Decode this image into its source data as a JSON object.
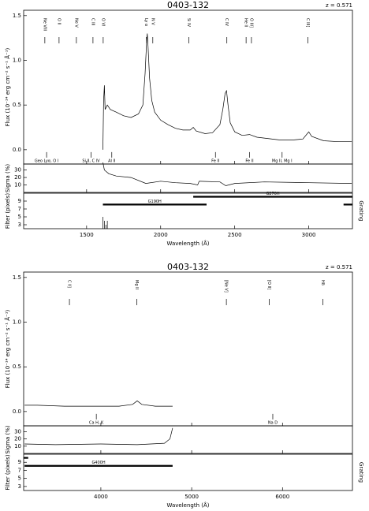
{
  "chart_data": [
    {
      "type": "spectrum",
      "title": "0403-132",
      "redshift_label": "z = 0.571",
      "xlabel": "Wavelength (Å)",
      "xlim": [
        1075,
        3295
      ],
      "xticks": [
        1500,
        2000,
        2500,
        3000
      ],
      "flux": {
        "ylabel": "Flux (10⁻¹⁴ erg cm⁻² s⁻¹ Å⁻¹)",
        "ylim": [
          -0.16,
          1.56
        ],
        "yticks": [
          {
            "value": 0,
            "label": "0.0"
          },
          0.5,
          {
            "value": 1,
            "label": "1.0"
          },
          1.5
        ],
        "x": [
          1610,
          1615,
          1620,
          1625,
          1640,
          1660,
          1700,
          1750,
          1800,
          1850,
          1880,
          1895,
          1905,
          1910,
          1915,
          1925,
          1940,
          1960,
          2000,
          2050,
          2100,
          2150,
          2200,
          2220,
          2240,
          2300,
          2350,
          2400,
          2420,
          2435,
          2445,
          2455,
          2470,
          2500,
          2550,
          2600,
          2650,
          2700,
          2800,
          2900,
          2960,
          2990,
          3000,
          3020,
          3100,
          3200,
          3290
        ],
        "values": [
          0.0,
          0.55,
          0.72,
          0.45,
          0.5,
          0.45,
          0.42,
          0.38,
          0.36,
          0.4,
          0.5,
          0.85,
          1.2,
          1.3,
          1.15,
          0.8,
          0.55,
          0.42,
          0.33,
          0.28,
          0.24,
          0.22,
          0.22,
          0.25,
          0.21,
          0.18,
          0.19,
          0.28,
          0.45,
          0.63,
          0.66,
          0.5,
          0.3,
          0.2,
          0.16,
          0.17,
          0.14,
          0.13,
          0.11,
          0.11,
          0.12,
          0.18,
          0.2,
          0.15,
          0.1,
          0.09,
          0.09
        ]
      },
      "sigma": {
        "ylabel": "Sigma (%)",
        "ylim": [
          0,
          38
        ],
        "yticks": [
          10,
          20,
          30
        ],
        "x": [
          1610,
          1620,
          1650,
          1700,
          1800,
          1900,
          2000,
          2100,
          2200,
          2250,
          2260,
          2400,
          2440,
          2500,
          2700,
          3000,
          3290
        ],
        "values": [
          40,
          30,
          25,
          22,
          20,
          12,
          15,
          13,
          12,
          10,
          15,
          14,
          9,
          12,
          14,
          13,
          12
        ]
      },
      "filter": {
        "ylabel": "Filter (pixels)",
        "ylim": [
          2,
          11
        ],
        "yticks": [
          3,
          5,
          7,
          9
        ],
        "x": [
          1610,
          1620,
          1630,
          1640
        ],
        "values": [
          5,
          4,
          3,
          4
        ]
      },
      "grating_label": "Grating",
      "gratings": [
        {
          "label": "G190H",
          "start": 1610,
          "end": 2310
        },
        {
          "label": "G270H",
          "start": 2220,
          "end": 3295
        },
        {
          "start": 3235,
          "end": 3295
        }
      ],
      "emission_lines": [
        {
          "label": "Ne VIII",
          "x": 1218
        },
        {
          "label": "O II",
          "x": 1314
        },
        {
          "label": "Ne V",
          "x": 1431
        },
        {
          "label": "C III",
          "x": 1543
        },
        {
          "label": "O VI",
          "x": 1612
        },
        {
          "label": "Ly α",
          "x": 1904
        },
        {
          "label": "N V",
          "x": 1947
        },
        {
          "label": "Si IV",
          "x": 2191
        },
        {
          "label": "C IV",
          "x": 2447
        },
        {
          "label": "He II",
          "x": 2577
        },
        {
          "label": "O III]",
          "x": 2613
        },
        {
          "label": "C III]",
          "x": 2995
        }
      ],
      "absorption_lines": [
        {
          "label": "Geo Lyα, O I",
          "x": 1230
        },
        {
          "label": "Si II, C IV",
          "x": 1530
        },
        {
          "label": "Al II",
          "x": 1670
        },
        {
          "label": "Fe II",
          "x": 2370
        },
        {
          "label": "Fe II",
          "x": 2600
        },
        {
          "label": "Mg II, Mg I",
          "x": 2820
        }
      ]
    },
    {
      "type": "spectrum",
      "title": "0403-132",
      "redshift_label": "z = 0.571",
      "xlabel": "Wavelength (Å)",
      "xlim": [
        3150,
        6770
      ],
      "xticks": [
        4000,
        5000,
        6000
      ],
      "flux": {
        "ylabel": "Flux (10⁻¹⁴ erg cm⁻² s⁻¹ Å⁻¹)",
        "ylim": [
          -0.16,
          1.56
        ],
        "yticks": [
          {
            "value": 0,
            "label": "0.0"
          },
          0.5,
          {
            "value": 1,
            "label": "1.0"
          },
          1.5
        ],
        "x": [
          3160,
          3300,
          3600,
          3900,
          4200,
          4350,
          4400,
          4450,
          4600,
          4790
        ],
        "values": [
          0.07,
          0.07,
          0.06,
          0.06,
          0.06,
          0.08,
          0.12,
          0.08,
          0.06,
          0.06
        ]
      },
      "sigma": {
        "ylabel": "Sigma (%)",
        "ylim": [
          0,
          38
        ],
        "yticks": [
          10,
          20,
          30
        ],
        "x": [
          3160,
          3500,
          4000,
          4400,
          4700,
          4760,
          4790
        ],
        "values": [
          13,
          12,
          13,
          12,
          14,
          20,
          35
        ]
      },
      "filter": {
        "ylabel": "Filter (pixels)",
        "ylim": [
          2,
          11
        ],
        "yticks": [
          3,
          5,
          7,
          9
        ],
        "x": [],
        "values": []
      },
      "grating_label": "Grating",
      "gratings": [
        {
          "label": "G400H",
          "start": 3160,
          "end": 4790
        },
        {
          "start": 3150,
          "end": 3200
        }
      ],
      "emission_lines": [
        {
          "label": "C II]",
          "x": 3654
        },
        {
          "label": "Mg II",
          "x": 4396
        },
        {
          "label": "[Ne V]",
          "x": 5382
        },
        {
          "label": "[O II]",
          "x": 5855
        },
        {
          "label": "Hδ",
          "x": 6444
        }
      ],
      "absorption_lines": [
        {
          "label": "Ca H, K",
          "x": 3950
        },
        {
          "label": "Na D",
          "x": 5893
        }
      ]
    }
  ]
}
